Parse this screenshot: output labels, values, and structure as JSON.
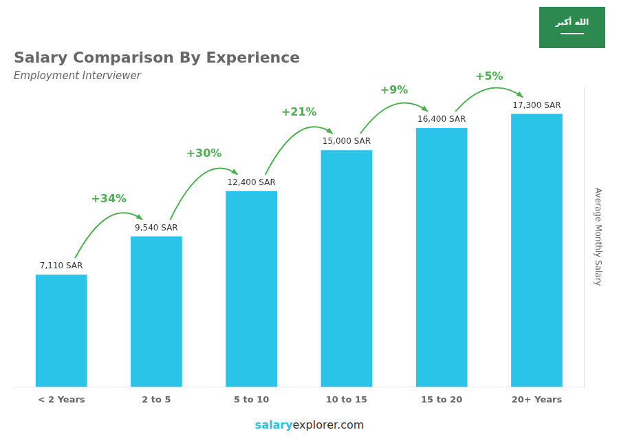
{
  "chart_data": {
    "type": "bar",
    "title": "Salary Comparison By Experience",
    "subtitle": "Employment Interviewer",
    "categories": [
      "< 2 Years",
      "2 to 5",
      "5 to 10",
      "10 to 15",
      "15 to 20",
      "20+ Years"
    ],
    "values": [
      7110,
      9540,
      12400,
      15000,
      16400,
      17300
    ],
    "value_labels": [
      "7,110 SAR",
      "9,540 SAR",
      "12,400 SAR",
      "15,000 SAR",
      "16,400 SAR",
      "17,300 SAR"
    ],
    "data_labels": true,
    "color": "#29C4E8",
    "ylabel": "Average Monthly Salary",
    "ylim": [
      0,
      19000
    ],
    "tick_labels": "x",
    "grid": false,
    "annotations": [
      "+34%",
      "+30%",
      "+21%",
      "+9%",
      "+5%"
    ],
    "footer": [
      "salary",
      "explorer.com"
    ],
    "badge": [
      "الله أكبر",
      "⸻"
    ]
  }
}
